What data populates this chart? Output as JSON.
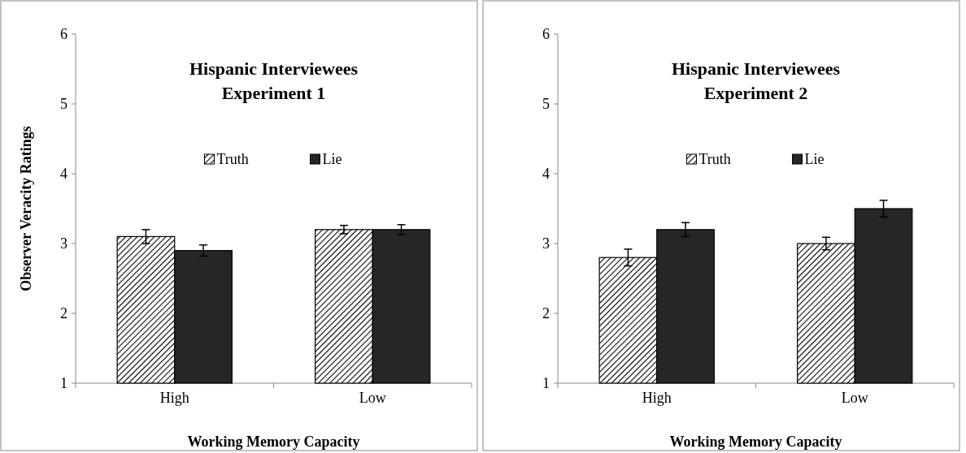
{
  "chart_data": [
    {
      "type": "bar",
      "title": "Hispanic Interviewees",
      "subtitle": "Experiment 1",
      "xlabel": "Working Memory Capacity",
      "ylabel": "Observer Veracity Ratings",
      "categories": [
        "High",
        "Low"
      ],
      "ylim": [
        1,
        6
      ],
      "yticks": [
        1,
        2,
        3,
        4,
        5,
        6
      ],
      "legend": "top",
      "grid": false,
      "series": [
        {
          "name": "Truth",
          "color": "#000000",
          "values": [
            3.1,
            3.2
          ],
          "errors": [
            0.1,
            0.06
          ]
        },
        {
          "name": "Lie",
          "color": "#262626",
          "values": [
            2.9,
            3.2
          ],
          "errors": [
            0.08,
            0.07
          ]
        }
      ]
    },
    {
      "type": "bar",
      "title": "Hispanic Interviewees",
      "subtitle": "Experiment 2",
      "xlabel": "Working Memory Capacity",
      "categories": [
        "High",
        "Low"
      ],
      "ylim": [
        1,
        6
      ],
      "yticks": [
        1,
        2,
        3,
        4,
        5,
        6
      ],
      "legend": "top",
      "grid": false,
      "series": [
        {
          "name": "Truth",
          "color": "#000000",
          "values": [
            2.8,
            3.0
          ],
          "errors": [
            0.12,
            0.09
          ]
        },
        {
          "name": "Lie",
          "color": "#262626",
          "values": [
            3.2,
            3.5
          ],
          "errors": [
            0.1,
            0.12
          ]
        }
      ]
    }
  ]
}
